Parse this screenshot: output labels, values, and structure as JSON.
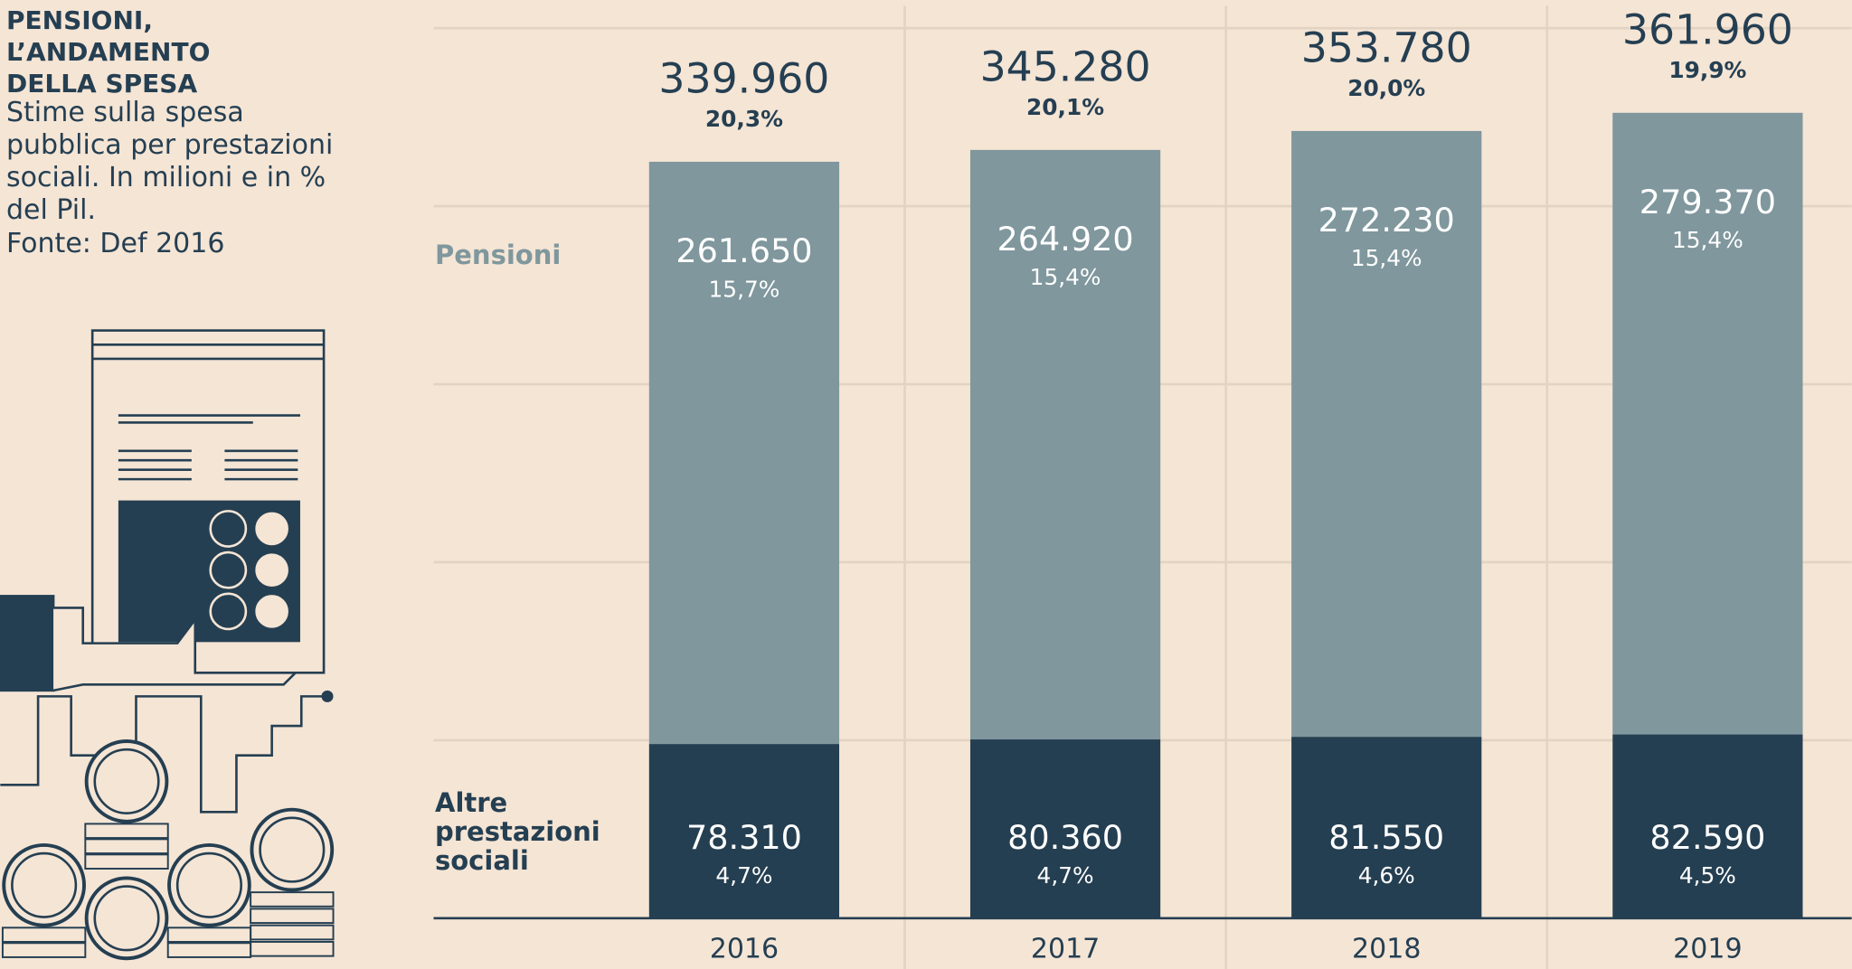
{
  "chart_data": {
    "type": "stacked_bar",
    "title": "PENSIONI, L’ANDAMENTO DELLA SPESA",
    "subtitle": "Stime sulla spesa pubblica per prestazioni sociali. In milioni e in % del Pil.",
    "source": "Fonte: Def 2016",
    "categories": [
      "2016",
      "2017",
      "2018",
      "2019"
    ],
    "series": [
      {
        "name": "Altre prestazioni sociali",
        "color": "#253f52",
        "values": [
          78310,
          80360,
          81550,
          82590
        ],
        "value_labels": [
          "78.310",
          "80.360",
          "81.550",
          "82.590"
        ],
        "gdp_share": {
          "values": [
            4.7,
            4.7,
            4.6,
            4.5
          ],
          "value_labels": [
            "4,7%",
            "4,7%",
            "4,6%",
            "4,5%"
          ]
        }
      },
      {
        "name": "Pensioni",
        "color": "#7f979d",
        "values": [
          261650,
          264920,
          272230,
          279370
        ],
        "value_labels": [
          "261.650",
          "264.920",
          "272.230",
          "279.370"
        ],
        "gdp_share": {
          "values": [
            15.7,
            15.4,
            15.4,
            15.4
          ],
          "value_labels": [
            "15,7%",
            "15,4%",
            "15,4%",
            "15,4%"
          ]
        }
      }
    ],
    "totals": {
      "values": [
        339960,
        345280,
        353780,
        361960
      ],
      "value_labels": [
        "339.960",
        "345.280",
        "353.780",
        "361.960"
      ],
      "gdp_share": {
        "values": [
          20.3,
          20.1,
          20.0,
          19.9
        ],
        "value_labels": [
          "20,3%",
          "20,1%",
          "20,0%",
          "19,9%"
        ]
      }
    },
    "ylim": [
      0,
      410000
    ],
    "yticks": [
      0,
      80000,
      160000,
      240000,
      320000,
      400000
    ],
    "grid": true
  }
}
